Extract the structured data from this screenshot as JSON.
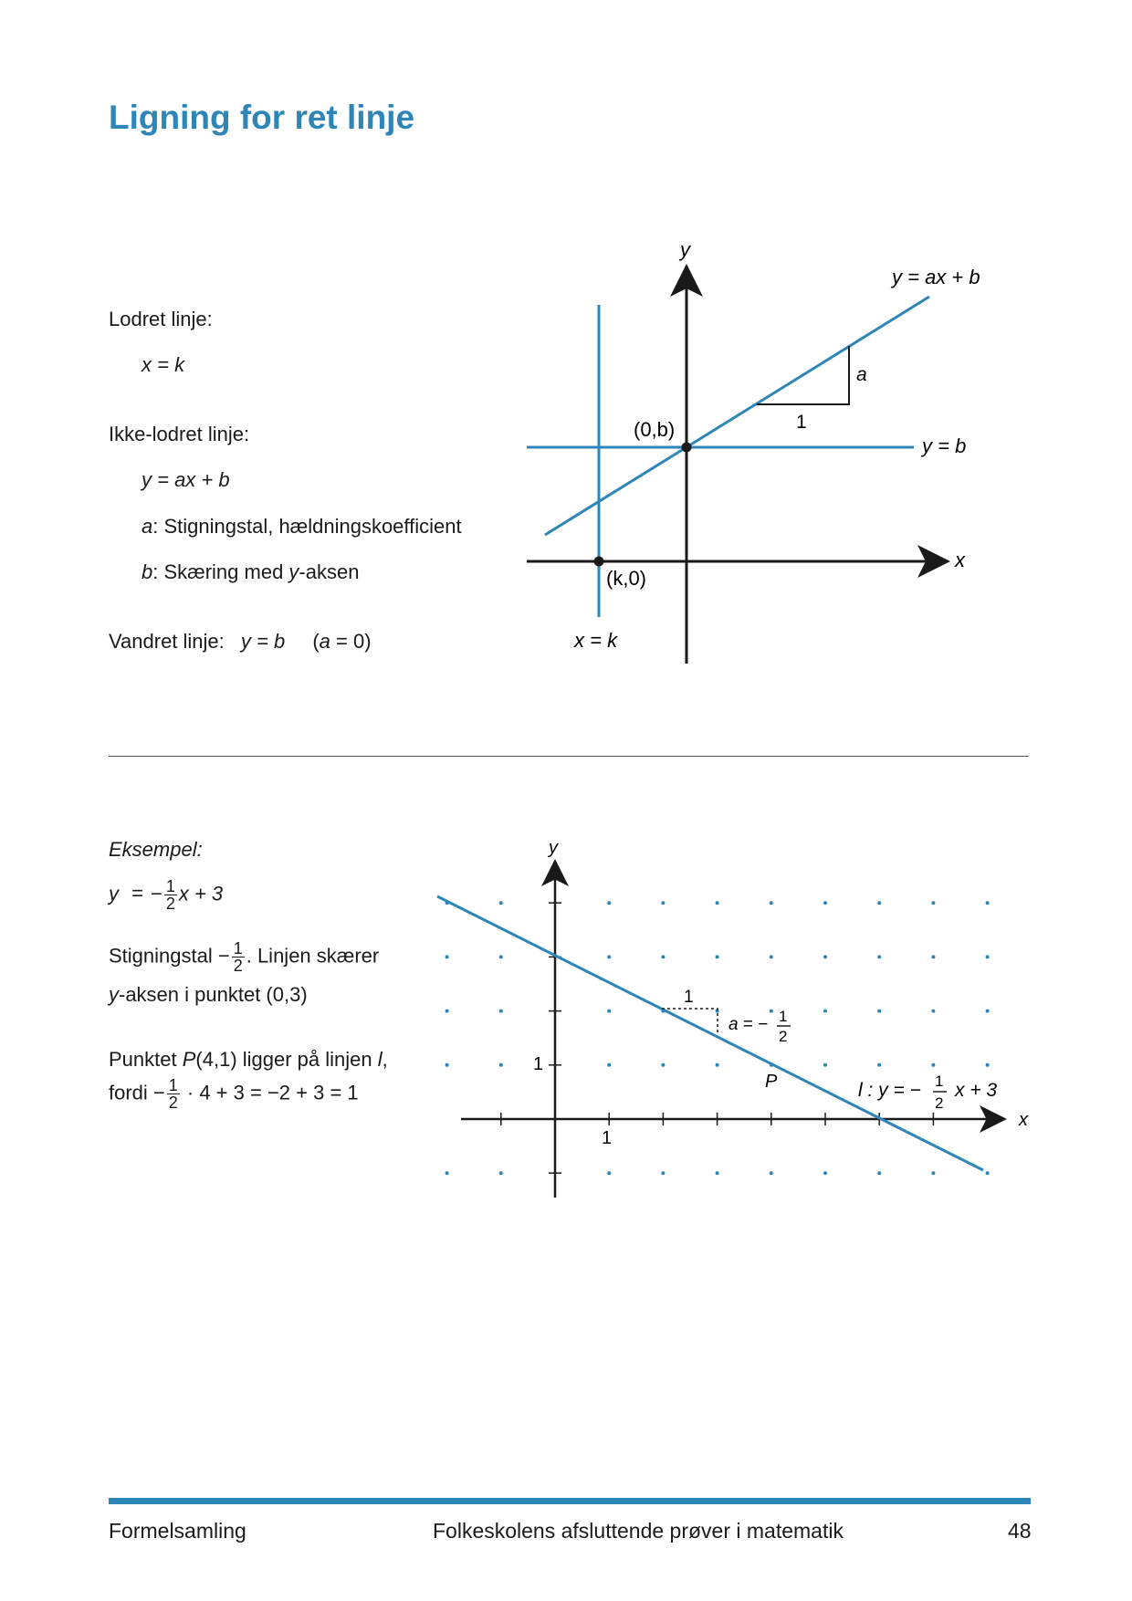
{
  "page": {
    "title": "Ligning for ret linje"
  },
  "left": {
    "vertical_heading": "Lodret linje:",
    "vertical_eq": "x = k",
    "nonvertical_heading": "Ikke-lodret linje:",
    "nonvertical_eq": "y = ax + b",
    "a_var": "a",
    "a_desc": ": Stigningstal, hældningskoefficient",
    "b_var": "b",
    "b_desc_pre": ": Skæring med ",
    "b_desc_y": "y",
    "b_desc_post": "-aksen",
    "horizontal_heading": "Vandret linje:",
    "horizontal_eq": "y = b",
    "horizontal_note_open": "(",
    "horizontal_note_a": "a",
    "horizontal_note_close": " = 0)"
  },
  "diagram1": {
    "y_axis_label": "y",
    "x_axis_label": "x",
    "line_label": "y = ax + b",
    "horizontal_label": "y = b",
    "vertical_label": "x = k",
    "intercept_label": "(0,b)",
    "xpoint_label": "(k,0)",
    "run_label": "1",
    "rise_label": "a"
  },
  "example": {
    "heading": "Eksempel:",
    "eq_y": "y",
    "eq_eq": "=",
    "eq_minus": "−",
    "frac_num": "1",
    "frac_den": "2",
    "eq_rest": "x + 3",
    "slope_pre": "Stigningstal −",
    "slope_post": ". Linjen skærer",
    "slope_line2_y": "y",
    "slope_line2_rest": "-aksen i punktet (0,3)",
    "point_line1_pre": "Punktet ",
    "point_P": "P",
    "point_coords": "(4,1) ligger på linjen ",
    "point_l": "l",
    "point_comma": ",",
    "point_line2_pre": "fordi −",
    "point_line2_post": " · 4 + 3 = −2 + 3 = 1"
  },
  "diagram2": {
    "y_axis_label": "y",
    "x_axis_label": "x",
    "x_tick_label": "1",
    "y_tick_label": "1",
    "run_label": "1",
    "slope_label_a": "a",
    "slope_label_eq": " = −",
    "point_label": "P",
    "line_label_l": "l",
    "line_label_mid": " : y = −",
    "line_label_end": "x + 3"
  },
  "footer": {
    "left": "Formelsamling",
    "center": "Folkeskolens afsluttende prøver i matematik",
    "page_number": "48"
  },
  "colors": {
    "accent": "#2e86b8",
    "text": "#1a1a1a"
  }
}
